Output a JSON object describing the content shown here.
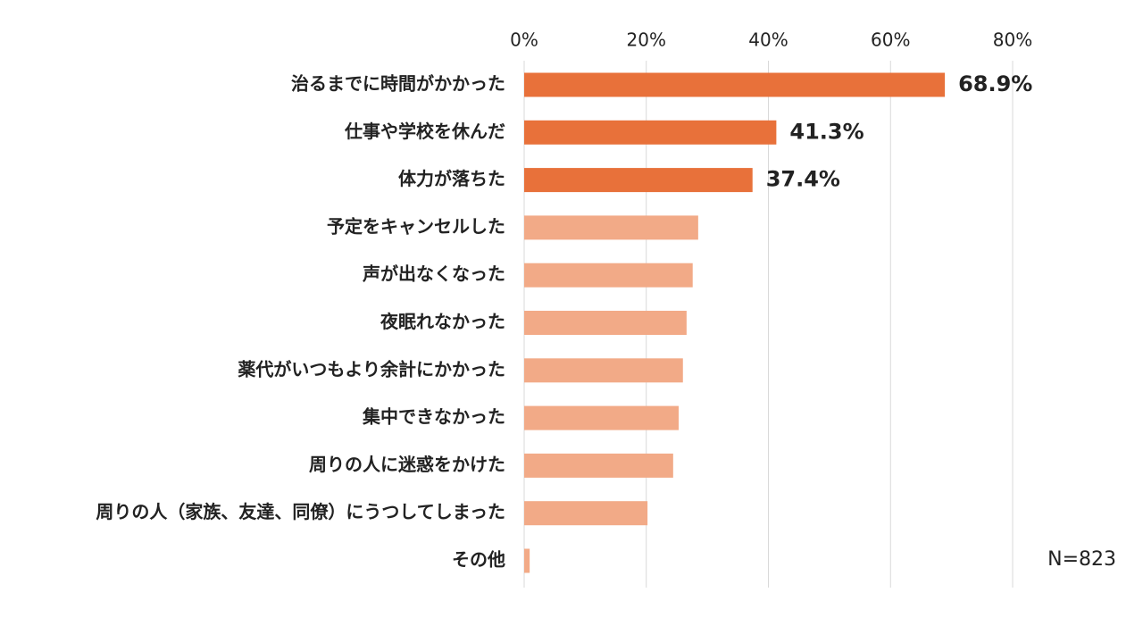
{
  "chart_data": {
    "type": "barh",
    "categories": [
      "治るまでに時間がかかった",
      "仕事や学校を休んだ",
      "体力が落ちた",
      "予定をキャンセルした",
      "声が出なくなった",
      "夜眠れなかった",
      "薬代がいつもより余計にかかった",
      "集中できなかった",
      "周りの人に迷惑をかけた",
      "周りの人（家族、友達、同僚）にうつしてしまった",
      "その他"
    ],
    "values": [
      68.9,
      41.3,
      37.4,
      28.5,
      27.6,
      26.6,
      26.0,
      25.3,
      24.4,
      20.2,
      0.9
    ],
    "value_labels": [
      "68.9%",
      "41.3%",
      "37.4%",
      null,
      null,
      null,
      null,
      null,
      null,
      null,
      null
    ],
    "colors": [
      "#e8713a",
      "#e8713a",
      "#e8713a",
      "#f2aa87",
      "#f2aa87",
      "#f2aa87",
      "#f2aa87",
      "#f2aa87",
      "#f2aa87",
      "#f2aa87",
      "#f2aa87"
    ],
    "xlim": [
      0,
      80
    ],
    "xticks": [
      {
        "value": 0,
        "label": "0%"
      },
      {
        "value": 20,
        "label": "20%"
      },
      {
        "value": 40,
        "label": "40%"
      },
      {
        "value": 60,
        "label": "60%"
      },
      {
        "value": 80,
        "label": "80%"
      }
    ],
    "grid": true,
    "note": "N=823"
  }
}
